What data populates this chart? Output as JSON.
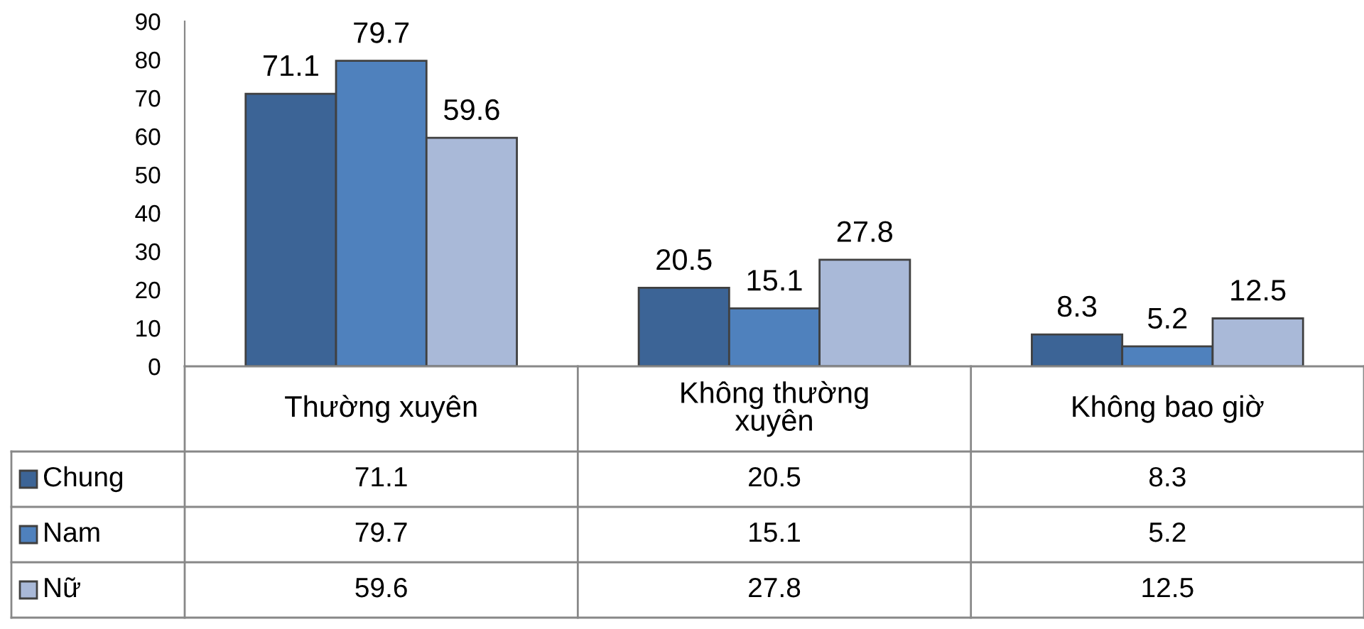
{
  "chart_data": {
    "type": "bar",
    "categories": [
      "Thường xuyên",
      "Không thường\nxuyên",
      "Không bao giờ"
    ],
    "series": [
      {
        "name": "Chung",
        "color": "#3c6496",
        "values": [
          71.1,
          20.5,
          8.3
        ],
        "value_labels": [
          "71.1",
          "20.5",
          "8.3"
        ]
      },
      {
        "name": "Nam",
        "color": "#4f81bd",
        "values": [
          79.7,
          15.1,
          5.2
        ],
        "value_labels": [
          "79.7",
          "15.1",
          "5.2"
        ]
      },
      {
        "name": "Nữ",
        "color": "#a9b9d8",
        "values": [
          59.6,
          27.8,
          12.5
        ],
        "value_labels": [
          "59.6",
          "27.8",
          "12.5"
        ]
      }
    ],
    "annotations": [
      "71.1",
      "20.5",
      "8.3",
      "79.7",
      "15.1",
      "5.2",
      "59.6",
      "27.8",
      "12.5"
    ],
    "ylim": [
      0,
      90
    ],
    "yticks": [
      0,
      10,
      20,
      30,
      40,
      50,
      60,
      70,
      80,
      90
    ],
    "grid": false,
    "legend": "bottom"
  }
}
